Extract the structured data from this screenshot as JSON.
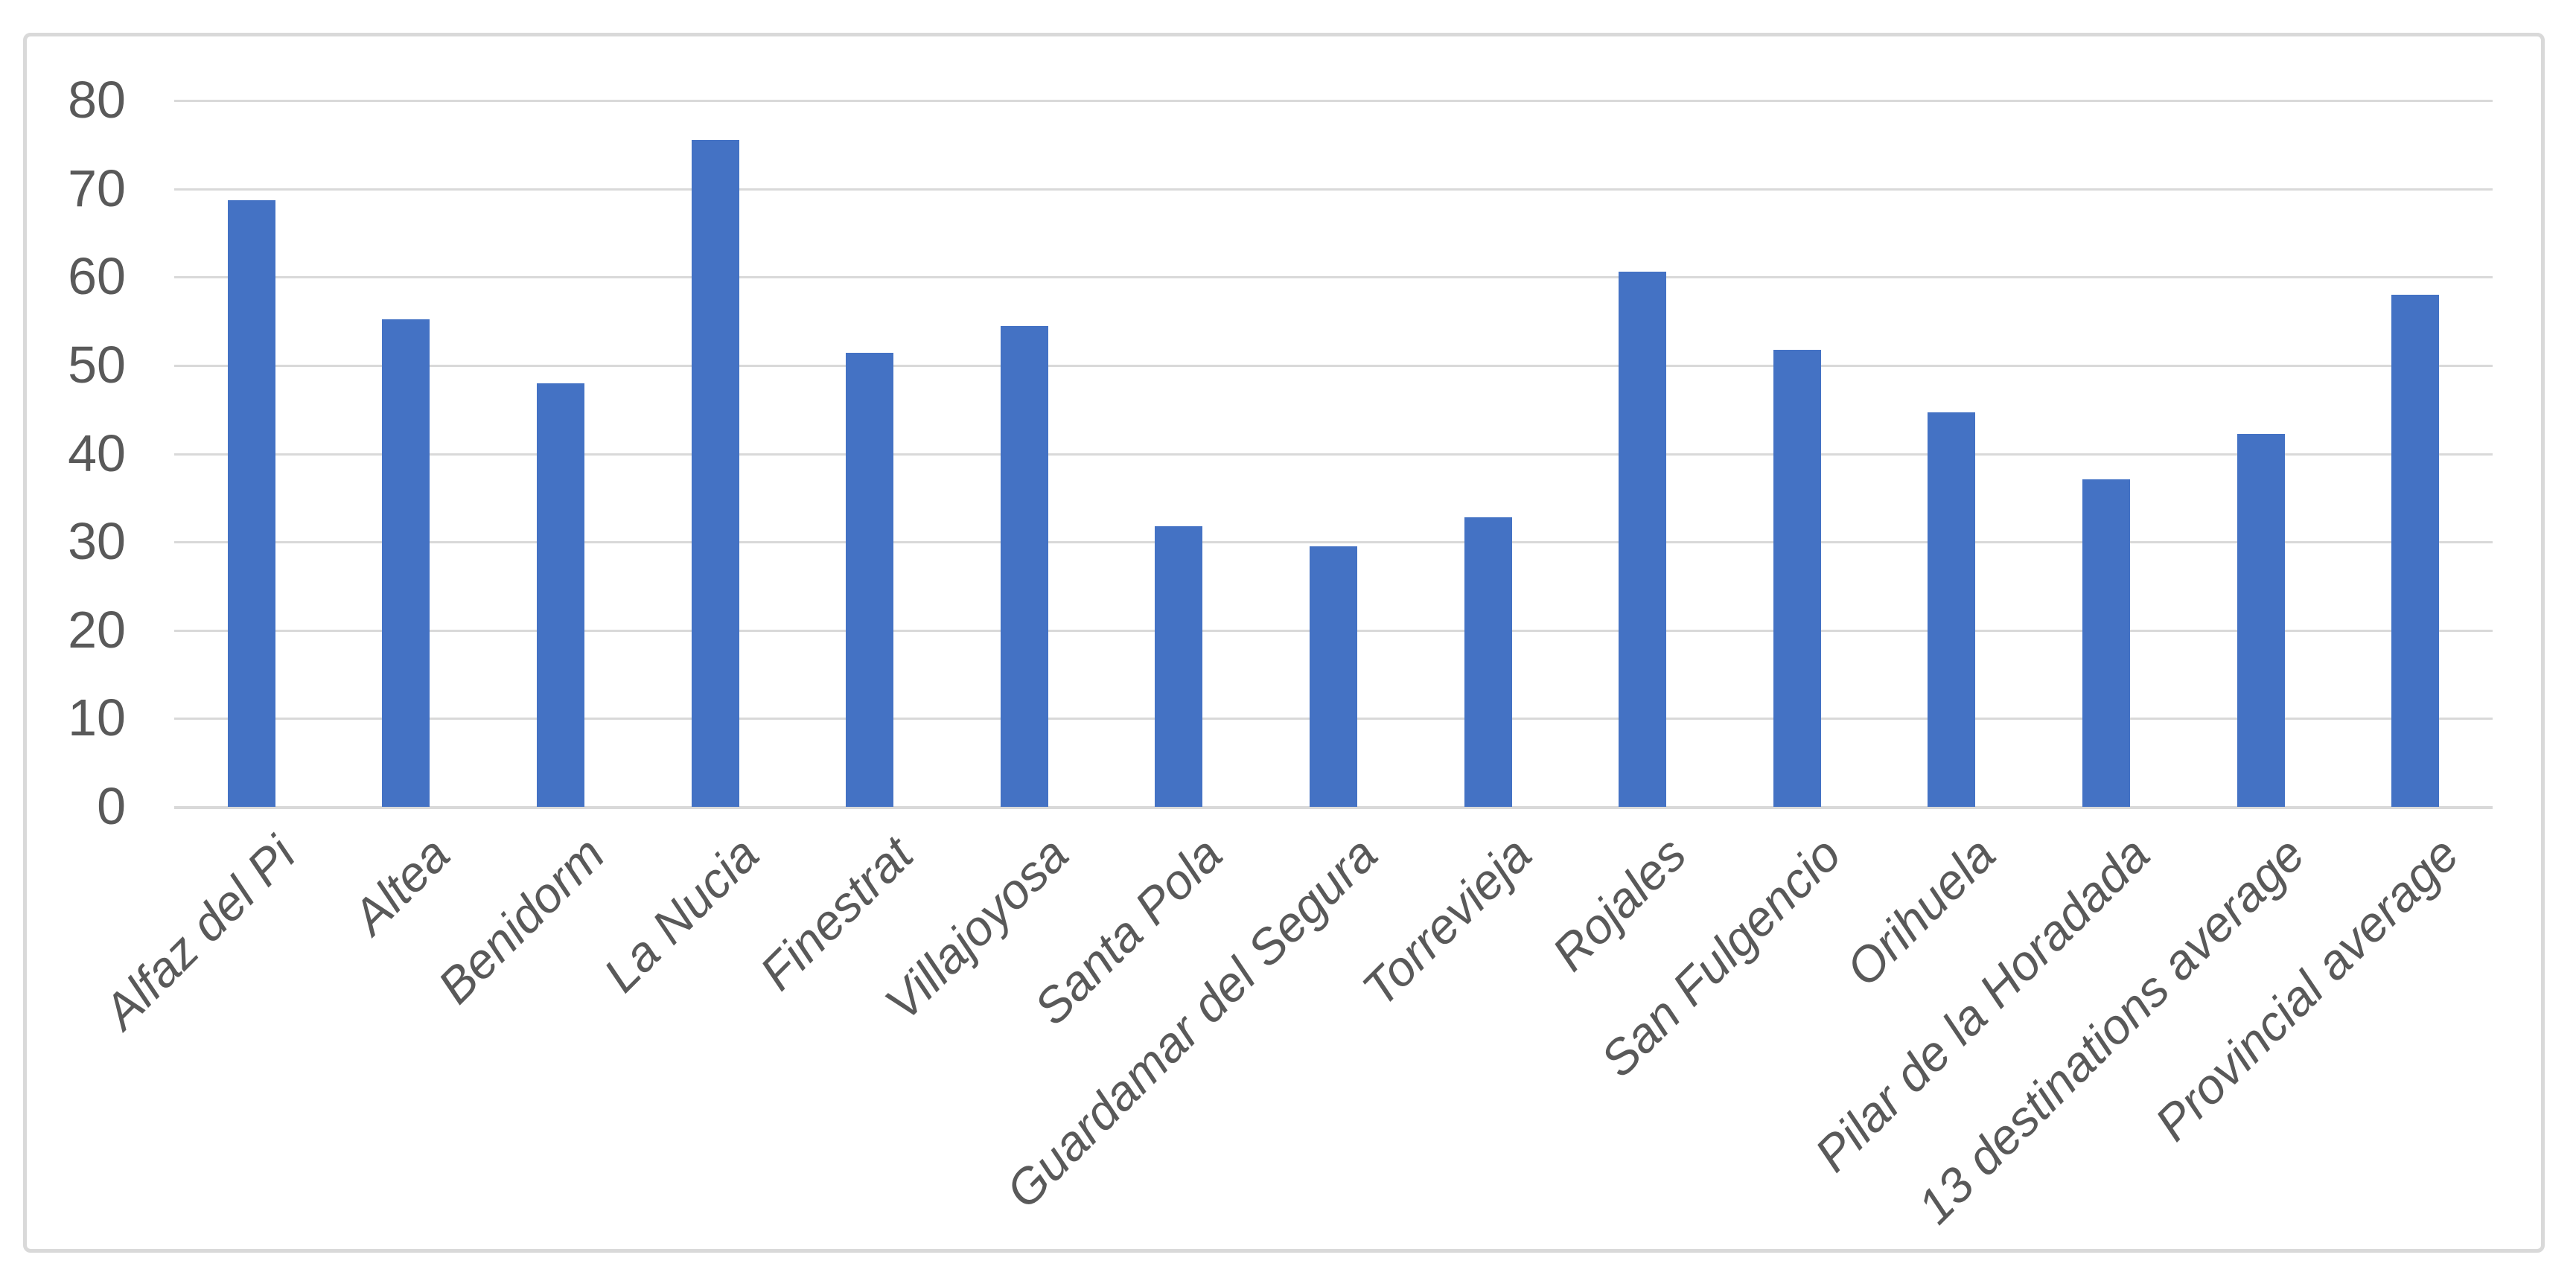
{
  "chart_data": {
    "type": "bar",
    "title": "",
    "xlabel": "",
    "ylabel": "",
    "categories": [
      "Alfaz del Pi",
      "Altea",
      "Benidorm",
      "La Nucia",
      "Finestrat",
      "Villajoyosa",
      "Santa Pola",
      "Guardamar del Segura",
      "Torrevieja",
      "Rojales",
      "San Fulgencio",
      "Orihuela",
      "Pilar de la Horadada",
      "13 destinations average",
      "Provincial average"
    ],
    "values": [
      68.7,
      55.2,
      48.0,
      75.5,
      51.4,
      54.5,
      31.8,
      29.5,
      32.8,
      60.6,
      51.8,
      44.7,
      37.1,
      42.2,
      58.0
    ],
    "ylim": [
      0,
      80
    ],
    "yticks": [
      0,
      10,
      20,
      30,
      40,
      50,
      60,
      70,
      80
    ],
    "grid": true,
    "legend": false,
    "colors": {
      "bar": "#4472C4",
      "gridline": "#D9D9D9",
      "axis_line": "#D9D9D9",
      "tick_label": "#595959",
      "chart_border": "#D9D9D9",
      "background": "#FFFFFF"
    }
  }
}
